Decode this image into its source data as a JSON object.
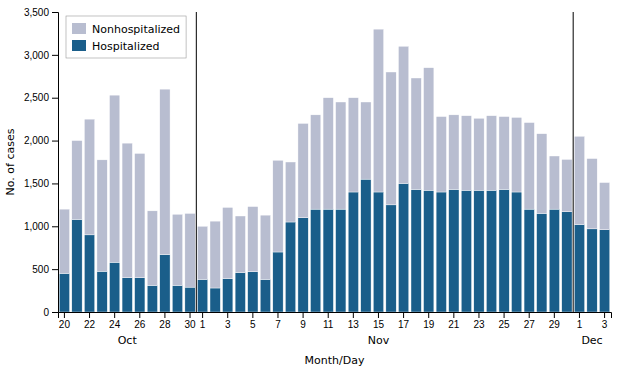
{
  "chart_data": {
    "type": "bar",
    "stacked": true,
    "xlabel": "Month/Day",
    "ylabel": "No. of cases",
    "categories": [
      "20",
      null,
      "22",
      null,
      "24",
      null,
      "26",
      null,
      "28",
      null,
      "30",
      "1",
      null,
      "3",
      null,
      "5",
      null,
      "7",
      null,
      "9",
      null,
      "11",
      null,
      "13",
      null,
      "15",
      null,
      "17",
      null,
      "19",
      null,
      "21",
      null,
      "23",
      null,
      "25",
      null,
      "27",
      null,
      "29",
      null,
      "1",
      null,
      "3"
    ],
    "series": [
      {
        "name": "Hospitalized",
        "color": "#1a5e8a",
        "values": [
          450,
          1080,
          900,
          475,
          580,
          400,
          400,
          310,
          670,
          310,
          290,
          380,
          280,
          390,
          460,
          470,
          380,
          700,
          1050,
          1100,
          1200,
          1200,
          1200,
          1400,
          1550,
          1400,
          1250,
          1500,
          1430,
          1420,
          1400,
          1430,
          1420,
          1420,
          1420,
          1430,
          1400,
          1200,
          1150,
          1200,
          1170,
          1020,
          970,
          960
        ]
      },
      {
        "name": "Nonhospitalized",
        "color": "#b8bdd0",
        "values": [
          750,
          920,
          1350,
          1300,
          1950,
          1570,
          1450,
          870,
          1930,
          830,
          860,
          620,
          780,
          830,
          660,
          760,
          750,
          1070,
          700,
          1100,
          1100,
          1300,
          1250,
          1100,
          900,
          1900,
          1550,
          1600,
          1300,
          1430,
          880,
          870,
          870,
          840,
          870,
          850,
          870,
          1010,
          930,
          620,
          610,
          1030,
          820,
          550
        ]
      }
    ],
    "ylim": [
      0,
      3500
    ],
    "yticks": [
      0,
      500,
      {
        "value": 1000,
        "label": "1,000"
      },
      {
        "value": 1500,
        "label": "1,500"
      },
      {
        "value": 2000,
        "label": "2,000"
      },
      {
        "value": 2500,
        "label": "2,500"
      },
      {
        "value": 3000,
        "label": "3,000"
      },
      {
        "value": 3500,
        "label": "3,500"
      }
    ],
    "annotations": [
      {
        "text": "Oct",
        "x": 5.0
      },
      {
        "text": "Nov",
        "x": 25.0
      },
      {
        "text": "Dec",
        "x": 42.0
      }
    ],
    "vlines": [
      10.5,
      40.5
    ],
    "legend": "upper left",
    "grid": false
  }
}
